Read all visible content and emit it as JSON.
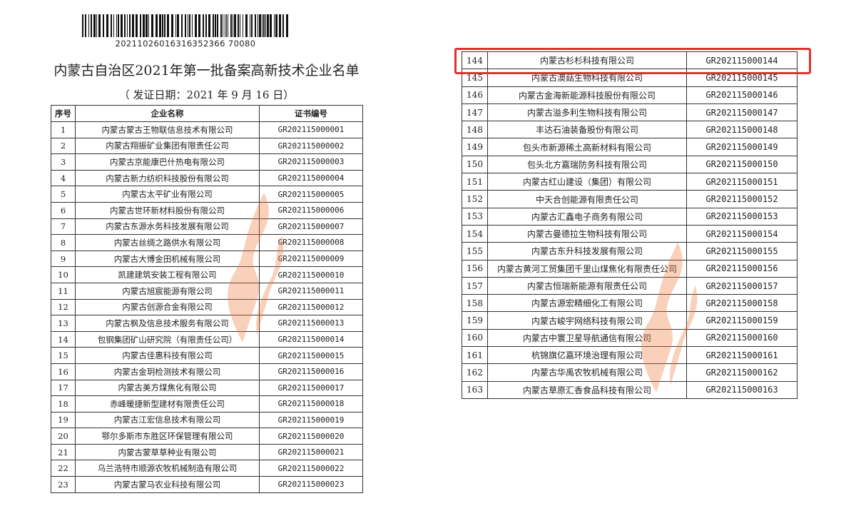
{
  "left_page": {
    "barcode_number": "20211026016316352366 70080",
    "title": "内蒙古自治区2021年第一批备案高新技术企业名单",
    "subtitle": "（ 发证日期：2021 年 9 月 16 日）",
    "headers": [
      "序号",
      "企业名称",
      "证书编号"
    ],
    "rows": [
      [
        "1",
        "内蒙古蒙古王物联信息技术有限公司",
        "GR202115000001"
      ],
      [
        "2",
        "内蒙古翔振矿业集团有限责任公司",
        "GR202115000002"
      ],
      [
        "3",
        "内蒙古京能康巴什热电有限公司",
        "GR202115000003"
      ],
      [
        "4",
        "内蒙古新力纺织科技股份有限公司",
        "GR202115000004"
      ],
      [
        "5",
        "内蒙古太平矿业有限公司",
        "GR202115000005"
      ],
      [
        "6",
        "内蒙古世环新材料股份有限公司",
        "GR202115000006"
      ],
      [
        "7",
        "内蒙古东源水务科技发展有限公司",
        "GR202115000007"
      ],
      [
        "8",
        "内蒙古丝绸之路供水有限公司",
        "GR202115000008"
      ],
      [
        "9",
        "内蒙古大博金田机械有限公司",
        "GR202115000009"
      ],
      [
        "10",
        "凯建建筑安装工程有限公司",
        "GR202115000010"
      ],
      [
        "11",
        "内蒙古旭宸能源有限公司",
        "GR202115000011"
      ],
      [
        "12",
        "内蒙古创源合金有限公司",
        "GR202115000012"
      ],
      [
        "13",
        "内蒙古枫及信息技术服务有限公司",
        "GR202115000013"
      ],
      [
        "14",
        "包钢集团矿山研究院（有限责任公司）",
        "GR202115000014"
      ],
      [
        "15",
        "内蒙古佳惠科技有限公司",
        "GR202115000015"
      ],
      [
        "16",
        "内蒙古金玥检测技术有限公司",
        "GR202115000016"
      ],
      [
        "17",
        "内蒙古美方煤焦化有限公司",
        "GR202115000017"
      ],
      [
        "18",
        "赤峰暖捷新型建材有限责任公司",
        "GR202115000018"
      ],
      [
        "19",
        "内蒙古江宏信息技术有限公司",
        "GR202115000019"
      ],
      [
        "20",
        "鄂尔多斯市东胜区环保管理有限公司",
        "GR202115000020"
      ],
      [
        "21",
        "内蒙古蒙草草种业有限公司",
        "GR202115000021"
      ],
      [
        "22",
        "乌兰浩特市顺源农牧机械制造有限公司",
        "GR202115000022"
      ],
      [
        "23",
        "内蒙古蒙马农业科技有限公司",
        "GR202115000023"
      ]
    ]
  },
  "right_page": {
    "highlighted_row": "144",
    "highlight_color": "#e0322d",
    "rows": [
      [
        "144",
        "内蒙古杉杉科技有限公司",
        "GR202115000144"
      ],
      [
        "145",
        "内蒙古澳菇生物科技有限公司",
        "GR202115000145"
      ],
      [
        "146",
        "内蒙古金海新能源科技股份有限公司",
        "GR202115000146"
      ],
      [
        "147",
        "内蒙古溢多利生物科技有限公司",
        "GR202115000147"
      ],
      [
        "148",
        "丰达石油装备股份有限公司",
        "GR202115000148"
      ],
      [
        "149",
        "包头市新源稀土高新材料有限公司",
        "GR202115000149"
      ],
      [
        "150",
        "包头北方嘉瑞防务科技有限公司",
        "GR202115000150"
      ],
      [
        "151",
        "内蒙古红山建设（集团）有限公司",
        "GR202115000151"
      ],
      [
        "152",
        "中天合创能源有限责任公司",
        "GR202115000152"
      ],
      [
        "153",
        "内蒙古汇鑫电子商务有限公司",
        "GR202115000153"
      ],
      [
        "154",
        "内蒙古曼德拉生物科技有限公司",
        "GR202115000154"
      ],
      [
        "155",
        "内蒙古东升科技发展有限公司",
        "GR202115000155"
      ],
      [
        "156",
        "内蒙古黄河工贸集团千里山煤焦化有限责任公司",
        "GR202115000156"
      ],
      [
        "157",
        "内蒙古恒瑞新能源有限责任公司",
        "GR202115000157"
      ],
      [
        "158",
        "内蒙古源宏精细化工有限公司",
        "GR202115000158"
      ],
      [
        "159",
        "内蒙古峻宇网络科技有限公司",
        "GR202115000159"
      ],
      [
        "160",
        "内蒙古中寰卫星导航通信有限公司",
        "GR202115000160"
      ],
      [
        "161",
        "杭锦旗亿嘉环境治理有限公司",
        "GR202115000161"
      ],
      [
        "162",
        "内蒙古华禹农牧机械有限公司",
        "GR202115000162"
      ],
      [
        "163",
        "内蒙古草原汇香食品科技有限公司",
        "GR202115000163"
      ]
    ]
  },
  "watermark_icon": "flame-logo-icon",
  "watermark_color": "#f07a3a"
}
